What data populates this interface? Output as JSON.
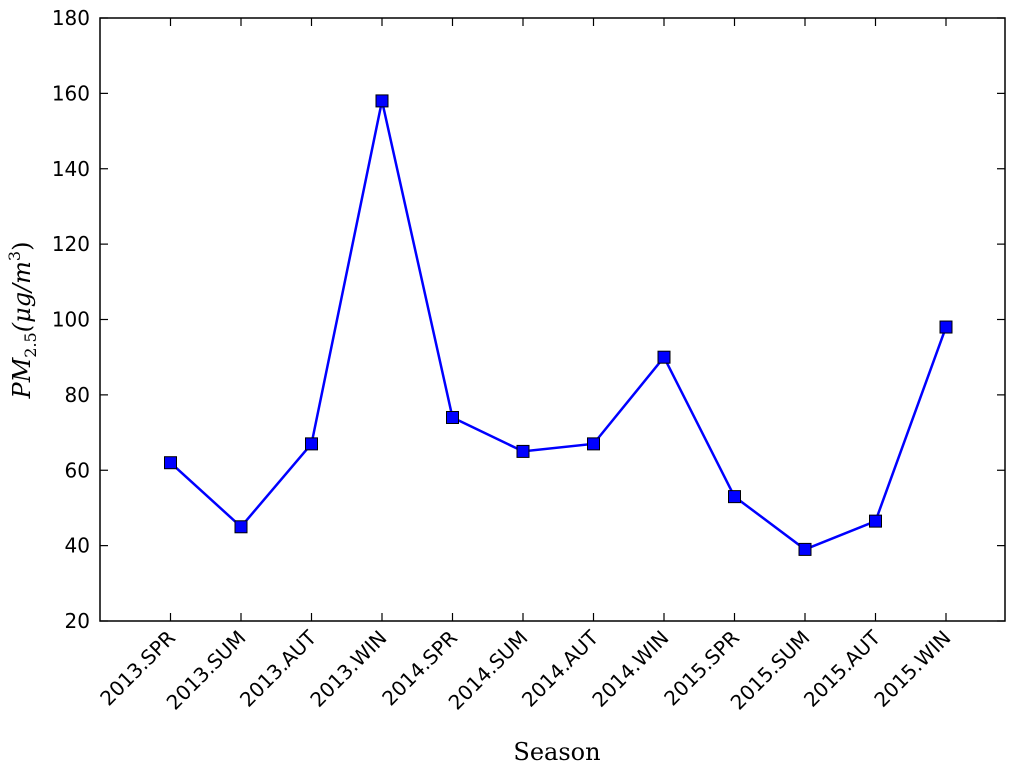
{
  "chart_data": {
    "type": "line",
    "xlabel": "Season",
    "ylabel": [
      "PM",
      "2.5",
      "(μg/m",
      "3",
      ")"
    ],
    "categories": [
      "2013.SPR",
      "2013.SUM",
      "2013.AUT",
      "2013.WIN",
      "2014.SPR",
      "2014.SUM",
      "2014.AUT",
      "2014.WIN",
      "2015.SPR",
      "2015.SUM",
      "2015.AUT",
      "2015.WIN"
    ],
    "series": [
      {
        "color": "#0000ff",
        "values": [
          62,
          45,
          67,
          158,
          74,
          65,
          67,
          90,
          53,
          39,
          46.5,
          98
        ]
      }
    ],
    "ylim": [
      20,
      180
    ],
    "yticks": [
      20,
      40,
      60,
      80,
      100,
      120,
      140,
      160,
      180
    ]
  }
}
